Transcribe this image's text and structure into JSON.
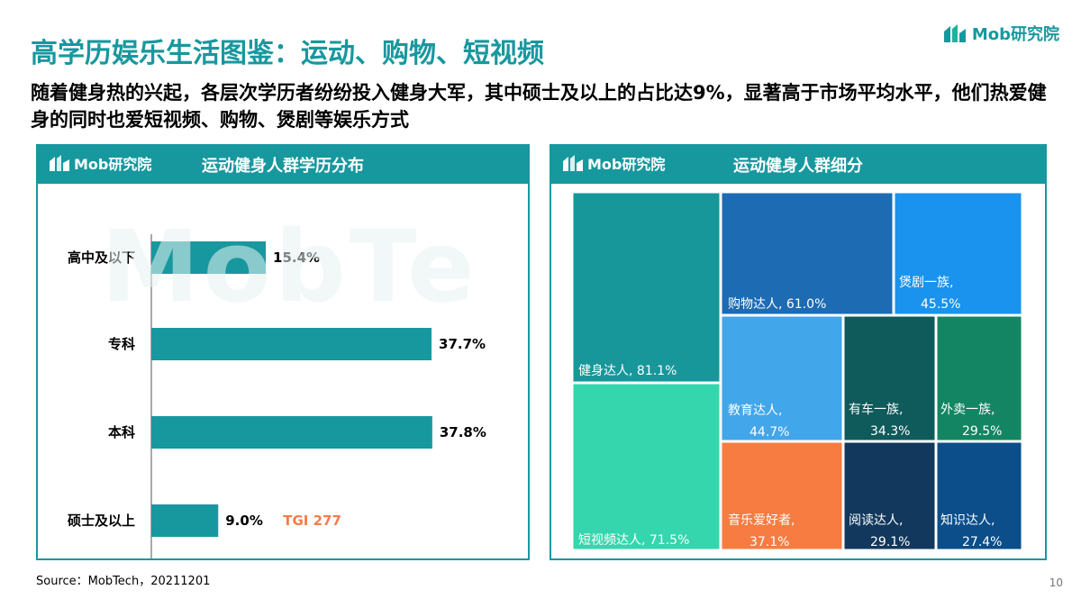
{
  "header": {
    "title": "高学历娱乐生活图鉴：运动、购物、短视频",
    "brand": "Mob研究院",
    "subtitle": "随着健身热的兴起，各层次学历者纷纷投入健身大军，其中硕士及以上的占比达9%，显著高于市场平均水平，他们热爱健身的同时也爱短视频、购物、煲剧等娱乐方式"
  },
  "watermark": "MobTe",
  "left_panel": {
    "logo": "Mob研究院",
    "title": "运动健身人群学历分布",
    "callout": "TGI 277"
  },
  "right_panel": {
    "logo": "Mob研究院",
    "title": "运动健身人群细分"
  },
  "chart_data": [
    {
      "type": "bar",
      "orientation": "horizontal",
      "title": "运动健身人群学历分布",
      "categories": [
        "高中及以下",
        "专科",
        "本科",
        "硕士及以上"
      ],
      "values": [
        15.4,
        37.7,
        37.8,
        9.0
      ],
      "value_labels": [
        "15.4%",
        "37.7%",
        "37.8%",
        "9.0%"
      ],
      "annotation": "TGI 277",
      "bar_color": "#17989e",
      "annotation_color": "#f47c4a"
    },
    {
      "type": "treemap",
      "title": "运动健身人群细分",
      "items": [
        {
          "name": "健身达人",
          "value": 81.1,
          "label": "健身达人, 81.1%",
          "color": "#17979a"
        },
        {
          "name": "短视频达人",
          "value": 71.5,
          "label": "短视频达人, 71.5%",
          "color": "#35d6ad"
        },
        {
          "name": "购物达人",
          "value": 61.0,
          "label": "购物达人, 61.0%",
          "color": "#1d6bb3"
        },
        {
          "name": "煲剧一族",
          "value": 45.5,
          "label1": "煲剧一族,",
          "label2": "45.5%",
          "color": "#1993ee"
        },
        {
          "name": "教育达人",
          "value": 44.7,
          "label1": "教育达人,",
          "label2": "44.7%",
          "color": "#42a6ea"
        },
        {
          "name": "有车一族",
          "value": 34.3,
          "label1": "有车一族,",
          "label2": "34.3%",
          "color": "#0f5a5b"
        },
        {
          "name": "外卖一族",
          "value": 29.5,
          "label1": "外卖一族,",
          "label2": "29.5%",
          "color": "#148562"
        },
        {
          "name": "音乐爱好者",
          "value": 37.1,
          "label1": "音乐爱好者,",
          "label2": "37.1%",
          "color": "#f77c42"
        },
        {
          "name": "阅读达人",
          "value": 29.1,
          "label1": "阅读达人,",
          "label2": "29.1%",
          "color": "#12385d"
        },
        {
          "name": "知识达人",
          "value": 27.4,
          "label1": "知识达人,",
          "label2": "27.4%",
          "color": "#0b4e89"
        }
      ]
    }
  ],
  "footer": {
    "source": "Source：MobTech，20211201",
    "page": "10"
  }
}
